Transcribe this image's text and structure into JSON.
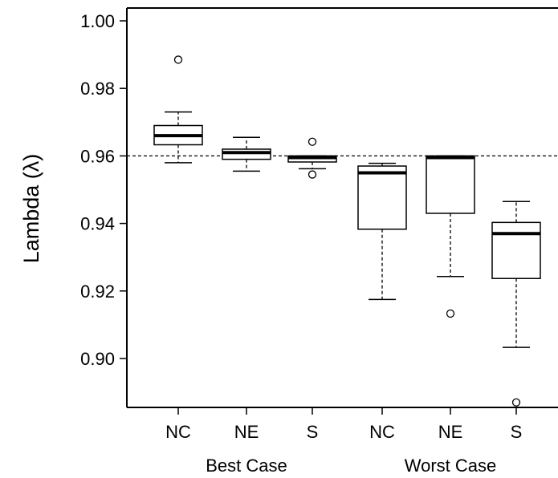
{
  "chart_data": {
    "type": "boxplot",
    "title": "",
    "xlabel": "",
    "ylabel": "Lambda (λ)",
    "ylim": [
      0.885,
      1.005
    ],
    "yticks": [
      "1.00",
      "0.98",
      "0.96",
      "0.94",
      "0.92",
      "0.90"
    ],
    "reference_line": 0.96,
    "groups": [
      {
        "label": "Best Case"
      },
      {
        "label": "Worst Case"
      }
    ],
    "boxes": [
      {
        "label": "NC",
        "group": "Best Case",
        "whisker_low": 0.958,
        "q1": 0.9633,
        "median": 0.966,
        "q3": 0.969,
        "whisker_high": 0.973,
        "outliers": [
          0.9885
        ]
      },
      {
        "label": "NE",
        "group": "Best Case",
        "whisker_low": 0.9555,
        "q1": 0.959,
        "median": 0.961,
        "q3": 0.962,
        "whisker_high": 0.9655,
        "outliers": []
      },
      {
        "label": "S",
        "group": "Best Case",
        "whisker_low": 0.9562,
        "q1": 0.9582,
        "median": 0.9595,
        "q3": 0.96,
        "whisker_high": 0.96,
        "outliers": [
          0.9642,
          0.9545
        ]
      },
      {
        "label": "NC",
        "group": "Worst Case",
        "whisker_low": 0.9175,
        "q1": 0.9383,
        "median": 0.955,
        "q3": 0.957,
        "whisker_high": 0.9578,
        "outliers": []
      },
      {
        "label": "NE",
        "group": "Worst Case",
        "whisker_low": 0.9243,
        "q1": 0.943,
        "median": 0.9595,
        "q3": 0.96,
        "whisker_high": 0.96,
        "outliers": [
          0.9133
        ]
      },
      {
        "label": "S",
        "group": "Worst Case",
        "whisker_low": 0.9033,
        "q1": 0.9237,
        "median": 0.937,
        "q3": 0.9403,
        "whisker_high": 0.9465,
        "outliers": [
          0.887
        ]
      }
    ]
  }
}
